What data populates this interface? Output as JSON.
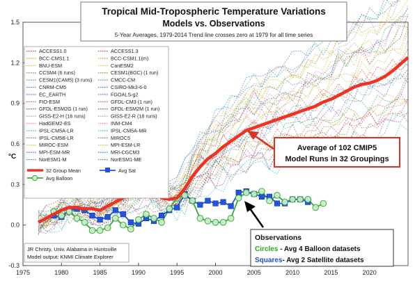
{
  "chart_data": {
    "type": "line",
    "title": "Tropical Mid-Tropospheric Temperature Variations",
    "subtitle": "Models vs. Observations",
    "subtitle2": "5-Year Averages, 1979-2014 Trend line crosses zero at 1979 for all time series",
    "ylabel": "°C",
    "xlim": [
      1975,
      2025
    ],
    "ylim": [
      -0.3,
      1.5
    ],
    "x_ticks": [
      "1975",
      "1980",
      "1985",
      "1990",
      "1995",
      "2000",
      "2005",
      "2010",
      "2015",
      "2020"
    ],
    "y_ticks": [
      "-0.3",
      "0.0",
      "0.3",
      "0.6",
      "0.9",
      "1.2",
      "1.5"
    ],
    "grid": false,
    "legend_position": "top-left",
    "legend": {
      "models_left": [
        "ACCESS1.0",
        "BCC-CMS1.1",
        "BNU-ESM",
        "CCSM4 (6 runs)",
        "CESM1(CAM5) (3 runs)",
        "CNRM-CM5",
        "EC_EARTH",
        "FIO-ESM",
        "GFDL-ESM2G (1 run)",
        "GISS-E2-H (16 runs)",
        "HadGEM2-ES",
        "IPSL-CM5A-LR",
        "IPSL-CM5B-LR",
        "MIROC-ESM",
        "MPI-ESM-MR",
        "NorESM1-M"
      ],
      "models_right": [
        "ACCESS1.3",
        "BCC-CSM1.1(m)",
        "CanESM2",
        "CESM1(BGC) (1 run)",
        "CMCC-CM",
        "CSIRO-Mk3-6-0",
        "FGOALS-g2",
        "GFDL-CM3 (1 run)",
        "GFDL-ESM2M (1 run)",
        "GISS-E2-R (18 runs)",
        "INM-CM4",
        "IPSL-CM5A-MR",
        "MIROC5",
        "MPI-ESM-LR",
        "MRI-CGCM3",
        "NorESM1-ME"
      ],
      "group_mean": "32 Group Mean",
      "avg_sat": "Avg Sat",
      "avg_balloon": "Avg Balloon"
    },
    "colors": {
      "group_mean": "#ee3322",
      "satellite": "#2255dd",
      "balloon": "#33aa33",
      "balloon_fill": "#ccf0cc",
      "callout_border": "#e03020",
      "obs_circles_text": "#22aa22",
      "obs_squares_text": "#1f4fd6"
    },
    "model_colors": [
      "#e6332a",
      "#f28c28",
      "#d4c21a",
      "#6a8f2a",
      "#2a9d8f",
      "#3b6fd1",
      "#7b4fc9",
      "#b03a8a",
      "#4d4d4d",
      "#999999",
      "#e377c2",
      "#17becf",
      "#8c564b",
      "#bcbd22",
      "#1f77b4",
      "#2ca02c"
    ],
    "series": [
      {
        "name": "32 Group Mean",
        "x": [
          1977,
          1978,
          1979,
          1980,
          1981,
          1982,
          1983,
          1984,
          1985,
          1986,
          1987,
          1988,
          1989,
          1990,
          1991,
          1992,
          1993,
          1994,
          1995,
          1996,
          1997,
          1998,
          1999,
          2000,
          2001,
          2002,
          2003,
          2004,
          2005,
          2006,
          2007,
          2008,
          2009,
          2010,
          2011,
          2012,
          2013,
          2014,
          2015,
          2016,
          2017,
          2018,
          2019,
          2020,
          2021,
          2022,
          2023,
          2024,
          2025
        ],
        "values": [
          0.02,
          0.05,
          0.08,
          0.11,
          0.13,
          0.13,
          0.12,
          0.12,
          0.11,
          0.14,
          0.17,
          0.2,
          0.24,
          0.26,
          0.26,
          0.24,
          0.2,
          0.19,
          0.2,
          0.27,
          0.36,
          0.43,
          0.49,
          0.53,
          0.58,
          0.62,
          0.66,
          0.7,
          0.72,
          0.74,
          0.76,
          0.78,
          0.8,
          0.82,
          0.84,
          0.86,
          0.88,
          0.91,
          0.93,
          0.96,
          0.99,
          1.02,
          1.04,
          1.05,
          1.07,
          1.1,
          1.14,
          1.19,
          1.24
        ]
      },
      {
        "name": "Avg Sat",
        "x": [
          1979,
          1980,
          1981,
          1982,
          1983,
          1984,
          1985,
          1986,
          1987,
          1988,
          1989,
          1990,
          1991,
          1992,
          1993,
          1994,
          1995,
          1996,
          1997,
          1998,
          1999,
          2000,
          2001,
          2002,
          2003,
          2004,
          2005,
          2006,
          2007,
          2008,
          2009,
          2010,
          2011,
          2012
        ],
        "values": [
          0.07,
          0.06,
          0.11,
          0.12,
          0.11,
          0.07,
          0.04,
          0.06,
          0.11,
          0.08,
          0.02,
          0.01,
          0.05,
          0.03,
          0.07,
          0.11,
          0.13,
          0.23,
          0.18,
          0.15,
          0.18,
          0.16,
          0.17,
          0.14,
          0.24,
          0.25,
          0.23,
          0.21,
          0.21,
          0.16,
          0.16,
          0.19,
          0.19,
          0.17
        ]
      },
      {
        "name": "Avg Balloon",
        "x": [
          1979,
          1980,
          1981,
          1982,
          1983,
          1984,
          1985,
          1986,
          1987,
          1988,
          1989,
          1990,
          1991,
          1992,
          1993,
          1994,
          1995,
          1996,
          1997,
          1998,
          1999,
          2000,
          2001,
          2002,
          2003,
          2004,
          2005,
          2006,
          2007,
          2008,
          2009,
          2010,
          2011,
          2012,
          2013,
          2014
        ],
        "values": [
          0.1,
          0.07,
          0.1,
          0.05,
          0.02,
          -0.04,
          -0.04,
          -0.02,
          0.05,
          0.0,
          -0.03,
          0.04,
          0.08,
          0.05,
          0.02,
          0.12,
          0.2,
          0.22,
          0.18,
          0.05,
          0.03,
          0.02,
          0.02,
          0.05,
          0.2,
          0.24,
          0.23,
          0.25,
          0.18,
          0.22,
          0.17,
          0.19,
          0.19,
          0.19,
          0.13,
          0.16
        ]
      }
    ],
    "annotations": {
      "callout_line1": "Average of 102 CMIP5",
      "callout_line2": "Model Runs in 32 Groupings",
      "obs_title": "Observations",
      "obs_circles_label": "Circles",
      "obs_circles_desc": " - Avg 4 Balloon datasets",
      "obs_squares_label": "Squares",
      "obs_squares_desc": "- Avg 2 Satellite datasets",
      "credit_line1": "JR Christy, Univ. Alabama in Huntsville",
      "credit_line2": "Model output: KNMI Climate Explorer"
    }
  }
}
